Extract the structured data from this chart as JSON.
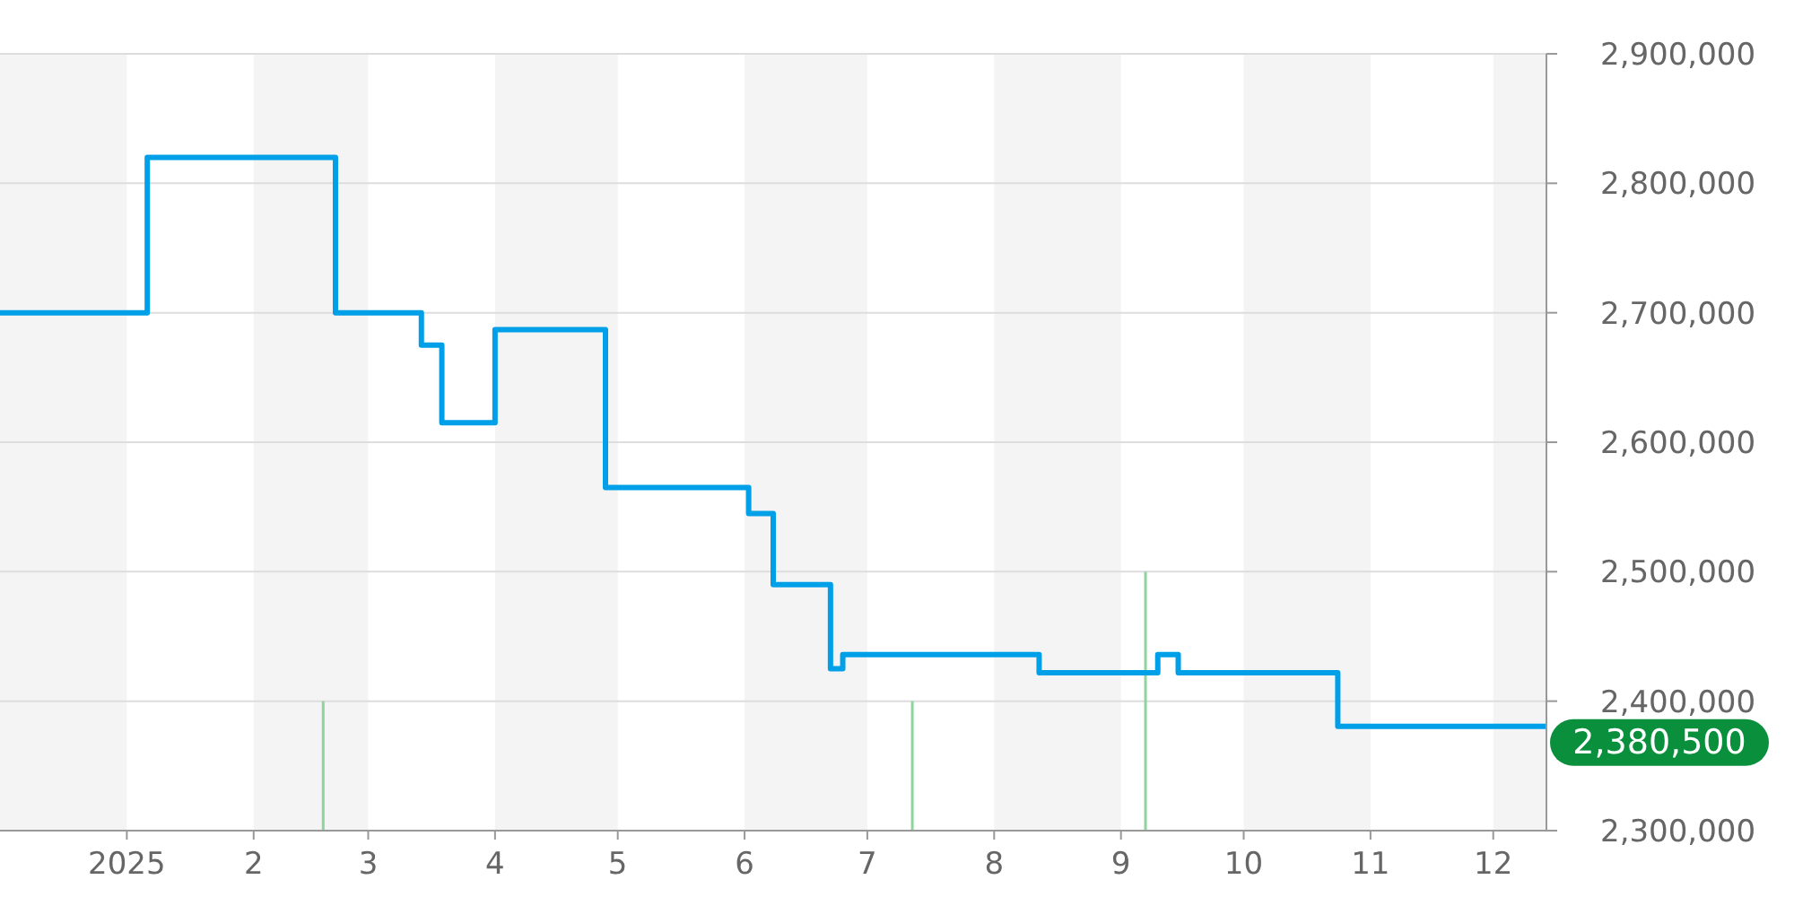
{
  "chart_data": {
    "type": "step",
    "xlim": [
      "2024-12-01",
      "2025-12-14"
    ],
    "xticks": [
      {
        "value": "2025-01-01",
        "label": "2025"
      },
      {
        "value": "2025-02-01",
        "label": "2"
      },
      {
        "value": "2025-03-01",
        "label": "3"
      },
      {
        "value": "2025-04-01",
        "label": "4"
      },
      {
        "value": "2025-05-01",
        "label": "5"
      },
      {
        "value": "2025-06-01",
        "label": "6"
      },
      {
        "value": "2025-07-01",
        "label": "7"
      },
      {
        "value": "2025-08-01",
        "label": "8"
      },
      {
        "value": "2025-09-01",
        "label": "9"
      },
      {
        "value": "2025-10-01",
        "label": "10"
      },
      {
        "value": "2025-11-01",
        "label": "11"
      },
      {
        "value": "2025-12-01",
        "label": "12"
      }
    ],
    "ylim": [
      2300000,
      2900000
    ],
    "yticks": [
      {
        "value": 2300000,
        "label": "2,300,000"
      },
      {
        "value": 2400000,
        "label": "2,400,000"
      },
      {
        "value": 2500000,
        "label": "2,500,000"
      },
      {
        "value": 2600000,
        "label": "2,600,000"
      },
      {
        "value": 2700000,
        "label": "2,700,000"
      },
      {
        "value": 2800000,
        "label": "2,800,000"
      },
      {
        "value": 2900000,
        "label": "2,900,000"
      }
    ],
    "grid": "y",
    "series": [
      {
        "type": "bar",
        "color": "#90d39c",
        "x": [
          "2025-02-18",
          "2025-07-12",
          "2025-09-07"
        ],
        "base": [
          2300000,
          2300000,
          2300000
        ],
        "values": [
          100000,
          100000,
          200000
        ]
      },
      {
        "color": "#00a0e9",
        "x": [
          "2024-12-01",
          "2025-01-06",
          "2025-02-21",
          "2025-03-14",
          "2025-03-19",
          "2025-04-01",
          "2025-04-28",
          "2025-06-02",
          "2025-06-08",
          "2025-06-22",
          "2025-06-25",
          "2025-08-12",
          "2025-09-10",
          "2025-09-15",
          "2025-10-24",
          "2025-12-14"
        ],
        "values": [
          2700000,
          2820000,
          2700000,
          2675000,
          2615000,
          2687000,
          2565000,
          2545000,
          2490000,
          2425000,
          2436000,
          2422000,
          2436000,
          2422000,
          2380500,
          2380500
        ]
      }
    ],
    "bands": [
      {
        "axis": "x",
        "from": "2024-12-01",
        "to": "2025-01-01",
        "color": "#f4f4f4"
      },
      {
        "axis": "x",
        "from": "2025-02-01",
        "to": "2025-03-01",
        "color": "#f4f4f4"
      },
      {
        "axis": "x",
        "from": "2025-04-01",
        "to": "2025-05-01",
        "color": "#f4f4f4"
      },
      {
        "axis": "x",
        "from": "2025-06-01",
        "to": "2025-07-01",
        "color": "#f4f4f4"
      },
      {
        "axis": "x",
        "from": "2025-08-01",
        "to": "2025-09-01",
        "color": "#f4f4f4"
      },
      {
        "axis": "x",
        "from": "2025-10-01",
        "to": "2025-11-01",
        "color": "#f4f4f4"
      },
      {
        "axis": "x",
        "from": "2025-12-01",
        "to": "2025-12-14",
        "color": "#f4f4f4"
      }
    ],
    "annotations": [
      "2,380,500"
    ]
  }
}
